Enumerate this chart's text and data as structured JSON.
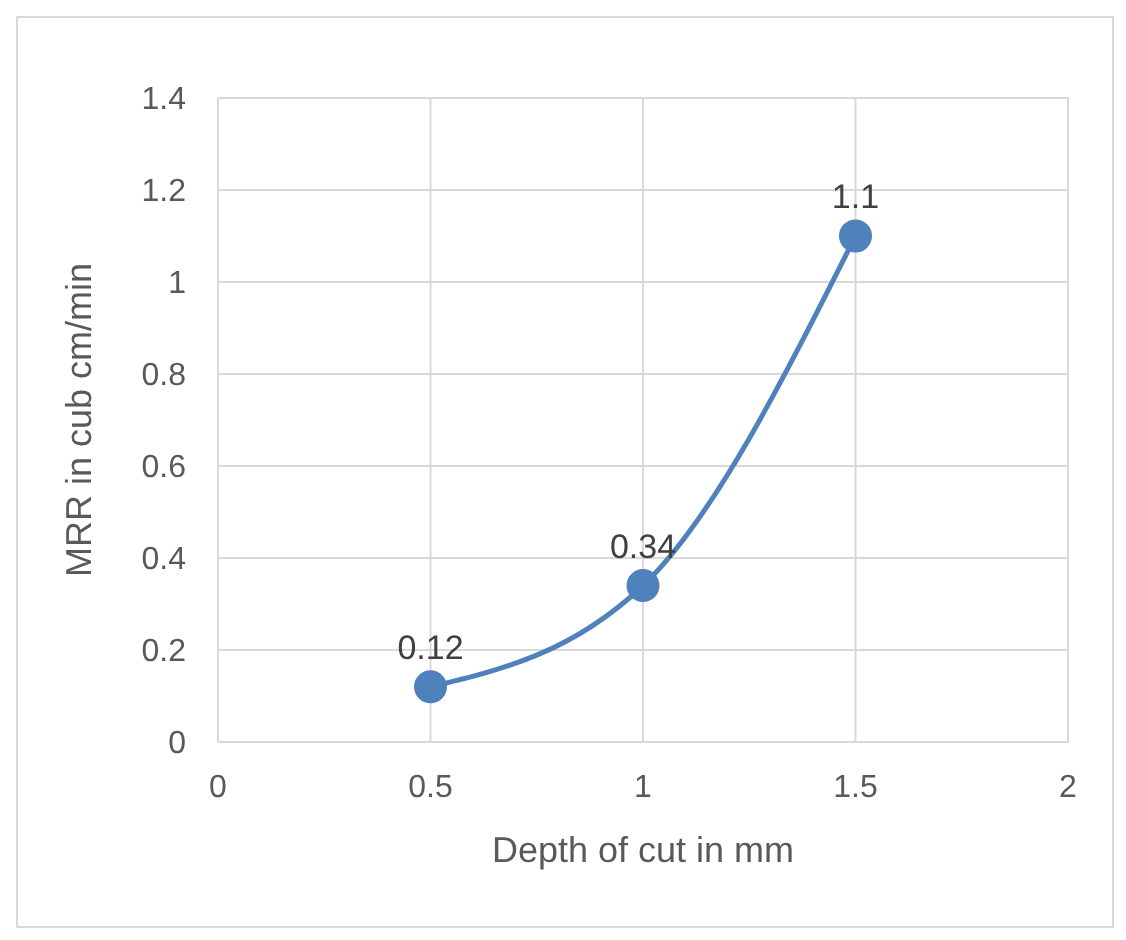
{
  "chart_data": {
    "type": "line",
    "xlabel": "Depth of cut in mm",
    "ylabel": "MRR in cub cm/min",
    "x": [
      0.5,
      1,
      1.5
    ],
    "series": [
      {
        "color": "#4f81bd",
        "values": [
          0.12,
          0.34,
          1.1
        ]
      }
    ],
    "xlim": [
      0,
      2
    ],
    "xticks": [
      0,
      0.5,
      1,
      1.5,
      2
    ],
    "ylim": [
      0,
      1.4
    ],
    "yticks": [
      0,
      0.2,
      0.4,
      0.6,
      0.8,
      1,
      1.2,
      1.4
    ],
    "grid": true,
    "marker": "circle",
    "line_style": "solid",
    "data_labels": true
  }
}
